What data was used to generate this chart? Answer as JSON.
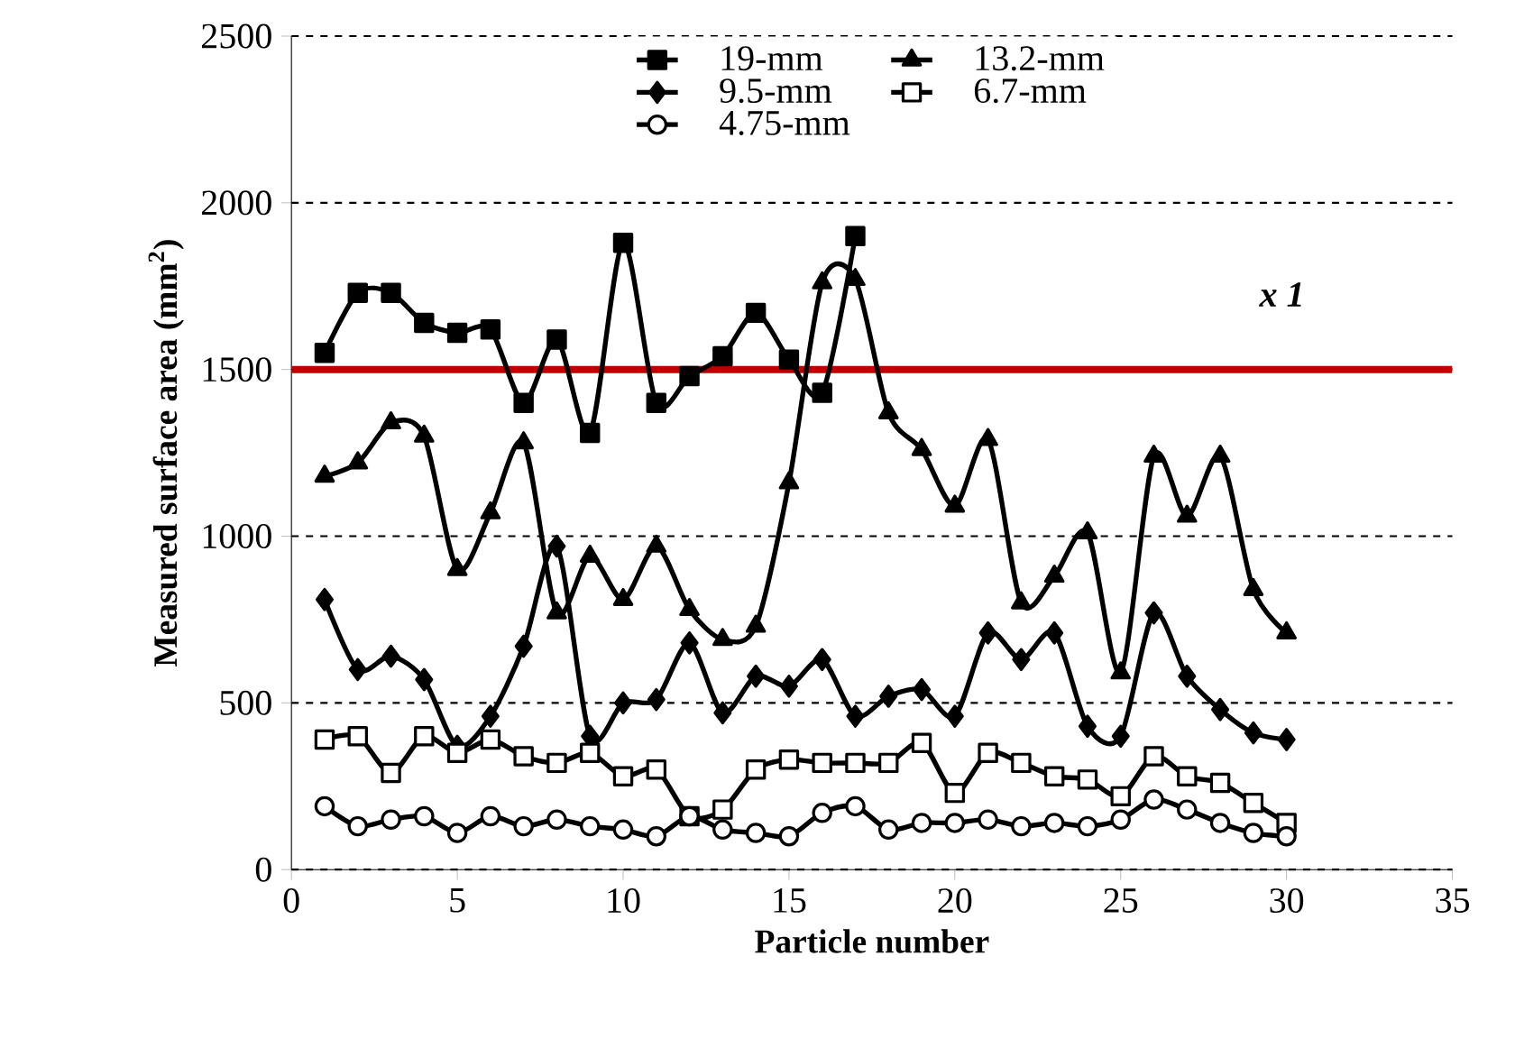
{
  "chart_data": {
    "type": "line",
    "xlabel": "Particle number",
    "ylabel": "Measured surface area (mm$^{2}$)",
    "xlim": [
      0,
      35
    ],
    "xticks": [
      0,
      5,
      10,
      15,
      20,
      25,
      30,
      35
    ],
    "ylim": [
      0,
      2500
    ],
    "yticks": [
      0,
      500,
      1000,
      1500,
      2000,
      2500
    ],
    "grid": "y",
    "legend": "top",
    "ref_lines": [
      {
        "axis": "y",
        "value": 1500,
        "color": "#c00000"
      }
    ],
    "annotations": [
      "x 1"
    ],
    "series": [
      {
        "name": "19-mm",
        "color": "#000000",
        "marker": "square",
        "x": [
          1,
          2,
          3,
          4,
          5,
          6,
          7,
          8,
          9,
          10,
          11,
          12,
          13,
          14,
          15,
          16,
          17
        ],
        "values": [
          1550,
          1730,
          1730,
          1640,
          1610,
          1620,
          1400,
          1590,
          1310,
          1880,
          1400,
          1480,
          1540,
          1670,
          1530,
          1430,
          1900
        ]
      },
      {
        "name": "13.2-mm",
        "color": "#000000",
        "marker": "triangle",
        "x": [
          1,
          2,
          3,
          4,
          5,
          6,
          7,
          8,
          9,
          10,
          11,
          12,
          13,
          14,
          15,
          16,
          17,
          18,
          19,
          20,
          21,
          22,
          23,
          24,
          25,
          26,
          27,
          28,
          29,
          30
        ],
        "values": [
          1180,
          1220,
          1340,
          1300,
          900,
          1070,
          1280,
          770,
          940,
          810,
          970,
          780,
          690,
          730,
          1160,
          1760,
          1770,
          1370,
          1260,
          1090,
          1290,
          800,
          880,
          1010,
          590,
          1240,
          1060,
          1240,
          840,
          710
        ]
      },
      {
        "name": "9.5-mm",
        "color": "#000000",
        "marker": "diamond",
        "x": [
          1,
          2,
          3,
          4,
          5,
          6,
          7,
          8,
          9,
          10,
          11,
          12,
          13,
          14,
          15,
          16,
          17,
          18,
          19,
          20,
          21,
          22,
          23,
          24,
          25,
          26,
          27,
          28,
          29,
          30
        ],
        "values": [
          810,
          600,
          640,
          570,
          370,
          460,
          670,
          970,
          400,
          500,
          510,
          680,
          470,
          580,
          550,
          630,
          460,
          520,
          540,
          460,
          710,
          630,
          710,
          430,
          400,
          770,
          580,
          480,
          410,
          390
        ]
      },
      {
        "name": "6.7-mm",
        "color": "#000000",
        "marker": "square",
        "x": [
          1,
          2,
          3,
          4,
          5,
          6,
          7,
          8,
          9,
          10,
          11,
          12,
          13,
          14,
          15,
          16,
          17,
          18,
          19,
          20,
          21,
          22,
          23,
          24,
          25,
          26,
          27,
          28,
          29,
          30
        ],
        "values": [
          390,
          400,
          290,
          400,
          350,
          390,
          340,
          320,
          350,
          280,
          300,
          160,
          180,
          300,
          330,
          320,
          320,
          320,
          380,
          230,
          350,
          320,
          280,
          270,
          220,
          340,
          280,
          260,
          200,
          140
        ]
      },
      {
        "name": "4.75-mm",
        "color": "#000000",
        "marker": "circle",
        "x": [
          1,
          2,
          3,
          4,
          5,
          6,
          7,
          8,
          9,
          10,
          11,
          12,
          13,
          14,
          15,
          16,
          17,
          18,
          19,
          20,
          21,
          22,
          23,
          24,
          25,
          26,
          27,
          28,
          29,
          30
        ],
        "values": [
          190,
          130,
          150,
          160,
          110,
          160,
          130,
          150,
          130,
          120,
          100,
          160,
          120,
          110,
          100,
          170,
          190,
          120,
          140,
          140,
          150,
          130,
          140,
          130,
          150,
          210,
          180,
          140,
          110,
          100
        ]
      }
    ]
  }
}
